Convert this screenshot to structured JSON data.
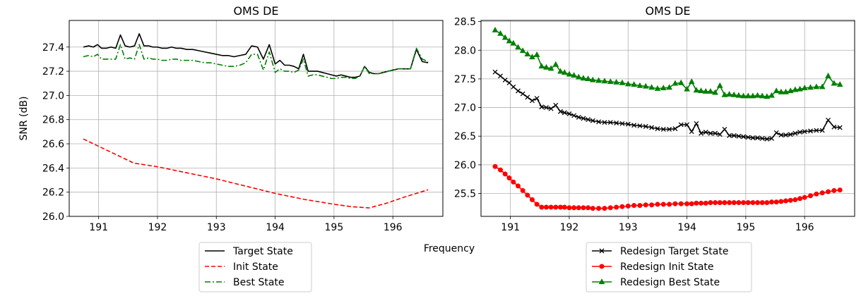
{
  "figure": {
    "ylabel": "SNR (dB)",
    "xlabel": "Frequency"
  },
  "chart_data": [
    {
      "type": "line",
      "title": "OMS DE",
      "xlabel": "",
      "ylabel": "SNR (dB)",
      "xlim": [
        190.5,
        196.85
      ],
      "ylim": [
        26.0,
        27.62
      ],
      "xticks": [
        191,
        192,
        193,
        194,
        195,
        196
      ],
      "yticks": [
        26.0,
        26.2,
        26.4,
        26.6,
        26.8,
        27.0,
        27.2,
        27.4
      ],
      "ytick_decimals": 1,
      "grid": true,
      "legend": "below",
      "series": [
        {
          "name": "Target State",
          "color": "#000000",
          "linestyle": "solid",
          "marker": "none",
          "x": [
            190.74,
            190.83,
            190.91,
            190.98,
            191.05,
            191.13,
            191.21,
            191.29,
            191.37,
            191.45,
            191.53,
            191.61,
            191.69,
            191.77,
            191.85,
            191.92,
            192.0,
            192.08,
            192.16,
            192.24,
            192.32,
            192.4,
            192.5,
            192.6,
            192.7,
            192.8,
            192.9,
            193.0,
            193.1,
            193.2,
            193.3,
            193.4,
            193.5,
            193.6,
            193.7,
            193.8,
            193.9,
            194.0,
            194.08,
            194.16,
            194.24,
            194.32,
            194.4,
            194.48,
            194.56,
            194.64,
            194.72,
            194.8,
            194.88,
            194.96,
            195.04,
            195.12,
            195.2,
            195.28,
            195.36,
            195.44,
            195.52,
            195.6,
            195.68,
            195.76,
            195.84,
            195.92,
            196.0,
            196.1,
            196.2,
            196.3,
            196.4,
            196.5,
            196.6
          ],
          "y": [
            27.4,
            27.41,
            27.4,
            27.42,
            27.39,
            27.39,
            27.4,
            27.39,
            27.5,
            27.41,
            27.4,
            27.41,
            27.51,
            27.41,
            27.41,
            27.4,
            27.4,
            27.39,
            27.39,
            27.4,
            27.39,
            27.39,
            27.38,
            27.38,
            27.37,
            27.36,
            27.35,
            27.34,
            27.33,
            27.33,
            27.32,
            27.33,
            27.34,
            27.41,
            27.4,
            27.3,
            27.42,
            27.26,
            27.29,
            27.25,
            27.25,
            27.24,
            27.22,
            27.34,
            27.2,
            27.2,
            27.2,
            27.19,
            27.18,
            27.17,
            27.16,
            27.17,
            27.16,
            27.15,
            27.15,
            27.16,
            27.24,
            27.19,
            27.18,
            27.18,
            27.19,
            27.2,
            27.21,
            27.22,
            27.22,
            27.22,
            27.38,
            27.28,
            27.27
          ]
        },
        {
          "name": "Init State",
          "color": "#ff0000",
          "linestyle": "dashed",
          "marker": "none",
          "x": [
            190.74,
            191.6,
            192.0,
            192.5,
            193.0,
            193.5,
            194.0,
            194.5,
            195.0,
            195.3,
            195.6,
            195.9,
            196.2,
            196.6
          ],
          "y": [
            26.64,
            26.44,
            26.41,
            26.36,
            26.31,
            26.25,
            26.19,
            26.14,
            26.1,
            26.08,
            26.07,
            26.11,
            26.16,
            26.22
          ]
        },
        {
          "name": "Best State",
          "color": "#008000",
          "linestyle": "dashdot",
          "marker": "none",
          "x": [
            190.74,
            190.83,
            190.91,
            190.98,
            191.05,
            191.13,
            191.21,
            191.29,
            191.37,
            191.45,
            191.53,
            191.61,
            191.69,
            191.77,
            191.85,
            191.92,
            192.0,
            192.08,
            192.16,
            192.24,
            192.32,
            192.4,
            192.5,
            192.6,
            192.7,
            192.8,
            192.9,
            193.0,
            193.1,
            193.2,
            193.3,
            193.4,
            193.5,
            193.6,
            193.7,
            193.8,
            193.9,
            194.0,
            194.08,
            194.16,
            194.24,
            194.32,
            194.4,
            194.48,
            194.56,
            194.64,
            194.72,
            194.8,
            194.88,
            194.96,
            195.04,
            195.12,
            195.2,
            195.28,
            195.36,
            195.44,
            195.52,
            195.6,
            195.68,
            195.76,
            195.84,
            195.92,
            196.0,
            196.1,
            196.2,
            196.3,
            196.4,
            196.5,
            196.6
          ],
          "y": [
            27.32,
            27.33,
            27.32,
            27.34,
            27.3,
            27.3,
            27.3,
            27.3,
            27.42,
            27.3,
            27.31,
            27.3,
            27.42,
            27.3,
            27.31,
            27.3,
            27.3,
            27.29,
            27.29,
            27.3,
            27.3,
            27.29,
            27.29,
            27.29,
            27.28,
            27.27,
            27.27,
            27.26,
            27.25,
            27.24,
            27.24,
            27.25,
            27.27,
            27.34,
            27.34,
            27.21,
            27.36,
            27.19,
            27.22,
            27.2,
            27.2,
            27.19,
            27.21,
            27.3,
            27.16,
            27.17,
            27.17,
            27.16,
            27.15,
            27.14,
            27.14,
            27.15,
            27.15,
            27.14,
            27.14,
            27.16,
            27.24,
            27.18,
            27.18,
            27.18,
            27.19,
            27.2,
            27.21,
            27.22,
            27.22,
            27.22,
            27.39,
            27.3,
            27.28
          ]
        }
      ]
    },
    {
      "type": "line",
      "title": "OMS DE",
      "xlabel": "",
      "ylabel": "",
      "xlim": [
        190.5,
        196.85
      ],
      "ylim": [
        25.1,
        28.52
      ],
      "xticks": [
        191,
        192,
        193,
        194,
        195,
        196
      ],
      "yticks": [
        25.5,
        26.0,
        26.5,
        27.0,
        27.5,
        28.0,
        28.5
      ],
      "ytick_decimals": 1,
      "grid": true,
      "legend": "below",
      "series": [
        {
          "name": "Redesign Target State",
          "color": "#000000",
          "linestyle": "solid",
          "marker": "x",
          "x": [
            190.74,
            190.83,
            190.91,
            190.98,
            191.05,
            191.13,
            191.21,
            191.29,
            191.37,
            191.45,
            191.53,
            191.61,
            191.69,
            191.77,
            191.85,
            191.92,
            192.0,
            192.08,
            192.16,
            192.24,
            192.32,
            192.4,
            192.5,
            192.6,
            192.7,
            192.8,
            192.9,
            193.0,
            193.1,
            193.2,
            193.3,
            193.4,
            193.5,
            193.6,
            193.7,
            193.8,
            193.9,
            194.0,
            194.08,
            194.16,
            194.24,
            194.32,
            194.4,
            194.48,
            194.56,
            194.64,
            194.72,
            194.8,
            194.88,
            194.96,
            195.04,
            195.12,
            195.2,
            195.28,
            195.36,
            195.44,
            195.52,
            195.6,
            195.68,
            195.76,
            195.84,
            195.92,
            196.0,
            196.1,
            196.2,
            196.3,
            196.4,
            196.5,
            196.6
          ],
          "y": [
            27.62,
            27.55,
            27.48,
            27.43,
            27.36,
            27.29,
            27.24,
            27.18,
            27.12,
            27.16,
            27.01,
            27.0,
            26.98,
            27.04,
            26.93,
            26.91,
            26.89,
            26.86,
            26.83,
            26.81,
            26.79,
            26.77,
            26.75,
            26.74,
            26.74,
            26.73,
            26.72,
            26.71,
            26.69,
            26.68,
            26.67,
            26.65,
            26.63,
            26.62,
            26.62,
            26.63,
            26.7,
            26.7,
            26.58,
            26.72,
            26.55,
            26.57,
            26.55,
            26.55,
            26.53,
            26.62,
            26.51,
            26.51,
            26.5,
            26.49,
            26.48,
            26.47,
            26.47,
            26.46,
            26.45,
            26.46,
            26.56,
            26.52,
            26.52,
            26.53,
            26.55,
            26.57,
            26.58,
            26.59,
            26.6,
            26.6,
            26.78,
            26.66,
            26.65
          ]
        },
        {
          "name": "Redesign Init State",
          "color": "#ff0000",
          "linestyle": "solid",
          "marker": "o",
          "x": [
            190.74,
            190.83,
            190.91,
            190.98,
            191.05,
            191.13,
            191.21,
            191.29,
            191.37,
            191.45,
            191.53,
            191.61,
            191.69,
            191.77,
            191.85,
            191.92,
            192.0,
            192.08,
            192.16,
            192.24,
            192.32,
            192.4,
            192.5,
            192.6,
            192.7,
            192.8,
            192.9,
            193.0,
            193.1,
            193.2,
            193.3,
            193.4,
            193.5,
            193.6,
            193.7,
            193.8,
            193.9,
            194.0,
            194.08,
            194.16,
            194.24,
            194.32,
            194.4,
            194.48,
            194.56,
            194.64,
            194.72,
            194.8,
            194.88,
            194.96,
            195.04,
            195.12,
            195.2,
            195.28,
            195.36,
            195.44,
            195.52,
            195.6,
            195.68,
            195.76,
            195.84,
            195.92,
            196.0,
            196.1,
            196.2,
            196.3,
            196.4,
            196.5,
            196.6
          ],
          "y": [
            25.97,
            25.91,
            25.84,
            25.77,
            25.7,
            25.63,
            25.55,
            25.47,
            25.39,
            25.31,
            25.26,
            25.26,
            25.26,
            25.26,
            25.26,
            25.26,
            25.25,
            25.25,
            25.25,
            25.25,
            25.25,
            25.24,
            25.24,
            25.24,
            25.25,
            25.26,
            25.27,
            25.28,
            25.29,
            25.29,
            25.3,
            25.3,
            25.31,
            25.31,
            25.31,
            25.32,
            25.32,
            25.32,
            25.32,
            25.33,
            25.33,
            25.33,
            25.34,
            25.34,
            25.34,
            25.34,
            25.34,
            25.34,
            25.34,
            25.34,
            25.34,
            25.34,
            25.34,
            25.34,
            25.34,
            25.35,
            25.35,
            25.36,
            25.37,
            25.38,
            25.39,
            25.41,
            25.43,
            25.46,
            25.49,
            25.51,
            25.53,
            25.55,
            25.56
          ]
        },
        {
          "name": "Redesign Best State",
          "color": "#008000",
          "linestyle": "solid",
          "marker": "^",
          "x": [
            190.74,
            190.83,
            190.91,
            190.98,
            191.05,
            191.13,
            191.21,
            191.29,
            191.37,
            191.45,
            191.53,
            191.61,
            191.69,
            191.77,
            191.85,
            191.92,
            192.0,
            192.08,
            192.16,
            192.24,
            192.32,
            192.4,
            192.5,
            192.6,
            192.7,
            192.8,
            192.9,
            193.0,
            193.1,
            193.2,
            193.3,
            193.4,
            193.5,
            193.6,
            193.7,
            193.8,
            193.9,
            194.0,
            194.08,
            194.16,
            194.24,
            194.32,
            194.4,
            194.48,
            194.56,
            194.64,
            194.72,
            194.8,
            194.88,
            194.96,
            195.04,
            195.12,
            195.2,
            195.28,
            195.36,
            195.44,
            195.52,
            195.6,
            195.68,
            195.76,
            195.84,
            195.92,
            196.0,
            196.1,
            196.2,
            196.3,
            196.4,
            196.5,
            196.6
          ],
          "y": [
            28.35,
            28.29,
            28.22,
            28.16,
            28.12,
            28.05,
            27.99,
            27.93,
            27.88,
            27.92,
            27.72,
            27.7,
            27.68,
            27.75,
            27.63,
            27.61,
            27.58,
            27.56,
            27.53,
            27.51,
            27.5,
            27.48,
            27.47,
            27.46,
            27.45,
            27.44,
            27.43,
            27.41,
            27.4,
            27.38,
            27.37,
            27.35,
            27.33,
            27.34,
            27.35,
            27.42,
            27.43,
            27.32,
            27.45,
            27.3,
            27.29,
            27.28,
            27.28,
            27.26,
            27.38,
            27.22,
            27.23,
            27.22,
            27.21,
            27.2,
            27.2,
            27.2,
            27.21,
            27.2,
            27.19,
            27.21,
            27.29,
            27.27,
            27.27,
            27.29,
            27.31,
            27.32,
            27.34,
            27.35,
            27.36,
            27.36,
            27.55,
            27.42,
            27.4
          ]
        }
      ]
    }
  ]
}
